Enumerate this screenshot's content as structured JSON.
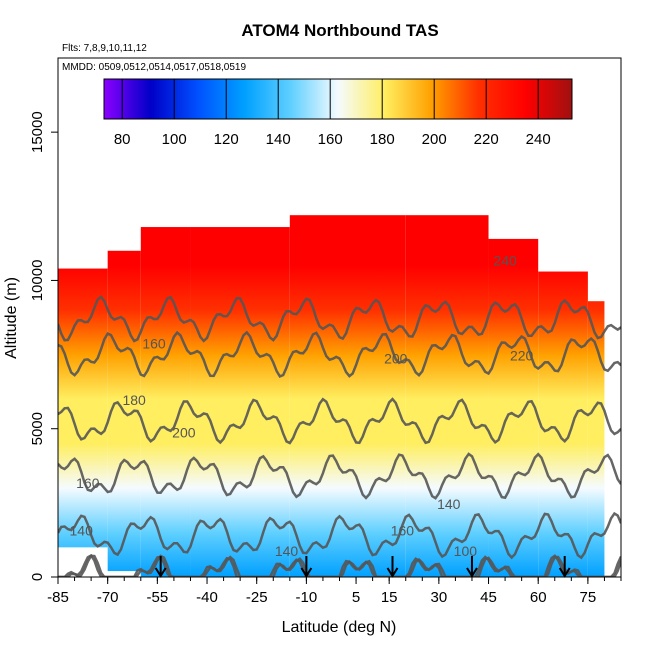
{
  "chart_data": {
    "type": "heatmap",
    "title": "ATOM4 Northbound TAS",
    "flights_note": "Flts: 7,8,9,10,11,12",
    "dates_note": "MMDD: 0509,0512,0514,0517,0518,0519",
    "xlabel": "Latitude (deg N)",
    "ylabel": "Altitude (m)",
    "xlim": [
      -85,
      85
    ],
    "ylim": [
      0,
      17500
    ],
    "x_ticks": [
      -85,
      -70,
      -55,
      -40,
      -25,
      -10,
      5,
      15,
      30,
      45,
      60,
      75
    ],
    "x_tick_labels": [
      "-85",
      "-70",
      "-55",
      "-40",
      "-25",
      "-10",
      "5",
      "15",
      "30",
      "45",
      "60",
      "75"
    ],
    "y_ticks": [
      0,
      5000,
      10000,
      15000
    ],
    "y_tick_labels": [
      "0",
      "5000",
      "10000",
      "15000"
    ],
    "colorbar": {
      "range": [
        73,
        253
      ],
      "ticks": [
        80,
        100,
        120,
        140,
        160,
        180,
        200,
        220,
        240
      ],
      "tick_labels": [
        "80",
        "100",
        "120",
        "140",
        "160",
        "180",
        "200",
        "220",
        "240"
      ],
      "colors": [
        "#8b00ff",
        "#0000c8",
        "#0050ff",
        "#00a0ff",
        "#60d0ff",
        "#f5fbff",
        "#ffee60",
        "#ffa000",
        "#ff3000",
        "#ff0000",
        "#a01010"
      ]
    },
    "contour_levels": [
      100,
      140,
      160,
      180,
      200,
      220,
      240
    ],
    "contour_labels": [
      {
        "text": "140",
        "lat": -78,
        "alt": 1400
      },
      {
        "text": "160",
        "lat": -76,
        "alt": 3000
      },
      {
        "text": "180",
        "lat": -62,
        "alt": 5800
      },
      {
        "text": "160",
        "lat": -56,
        "alt": 7700
      },
      {
        "text": "200",
        "lat": -47,
        "alt": 4700
      },
      {
        "text": "140",
        "lat": -16,
        "alt": 700
      },
      {
        "text": "200",
        "lat": 17,
        "alt": 7200
      },
      {
        "text": "160",
        "lat": 19,
        "alt": 1400
      },
      {
        "text": "140",
        "lat": 33,
        "alt": 2300
      },
      {
        "text": "100",
        "lat": 38,
        "alt": 700
      },
      {
        "text": "220",
        "lat": 55,
        "alt": 7300
      },
      {
        "text": "240",
        "lat": 50,
        "alt": 10500
      }
    ],
    "arrow_latitudes": [
      -54,
      -10,
      16,
      40,
      68
    ],
    "coverage": [
      {
        "lat0": -85,
        "lat1": -70,
        "alt0": 1000,
        "alt1": 10400
      },
      {
        "lat0": -70,
        "lat1": -60,
        "alt0": 200,
        "alt1": 11000
      },
      {
        "lat0": -60,
        "lat1": -45,
        "alt0": 0,
        "alt1": 11800
      },
      {
        "lat0": -45,
        "lat1": -15,
        "alt0": 0,
        "alt1": 11800
      },
      {
        "lat0": -15,
        "lat1": 20,
        "alt0": 0,
        "alt1": 12200
      },
      {
        "lat0": 20,
        "lat1": 45,
        "alt0": 0,
        "alt1": 12200
      },
      {
        "lat0": 45,
        "lat1": 60,
        "alt0": 0,
        "alt1": 11400
      },
      {
        "lat0": 60,
        "lat1": 75,
        "alt0": 0,
        "alt1": 10300
      },
      {
        "lat0": 75,
        "lat1": 80,
        "alt0": 0,
        "alt1": 9300
      }
    ]
  }
}
